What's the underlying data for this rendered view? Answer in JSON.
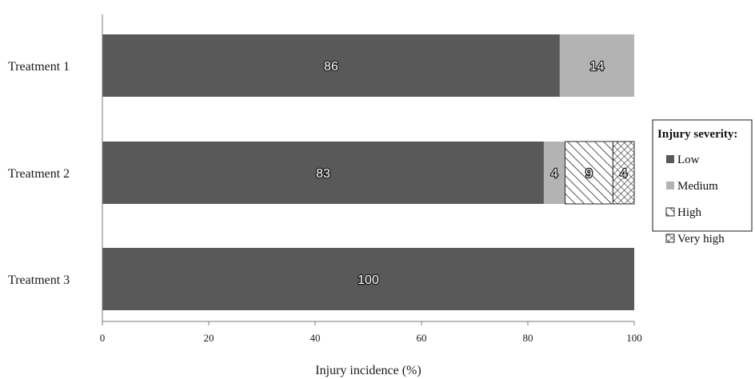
{
  "chart_data": {
    "type": "bar",
    "orientation": "horizontal",
    "stacked": true,
    "categories": [
      "Treatment 1",
      "Treatment 2",
      "Treatment 3"
    ],
    "series": [
      {
        "name": "Low",
        "values": [
          86,
          83,
          100
        ],
        "color": "#595959",
        "pattern": "solid"
      },
      {
        "name": "Medium",
        "values": [
          14,
          4,
          0
        ],
        "color": "#b3b3b3",
        "pattern": "solid"
      },
      {
        "name": "High",
        "values": [
          0,
          9,
          0
        ],
        "color": "#ffffff",
        "pattern": "diagonal-hatch"
      },
      {
        "name": "Very high",
        "values": [
          0,
          4,
          0
        ],
        "color": "#ffffff",
        "pattern": "crosshatch"
      }
    ],
    "xlabel": "Injury incidence (%)",
    "xlim": [
      0,
      100
    ],
    "xticks": [
      0,
      20,
      40,
      60,
      80,
      100
    ],
    "legend_title": "Injury severity:",
    "legend_position": "right",
    "grid": false
  }
}
